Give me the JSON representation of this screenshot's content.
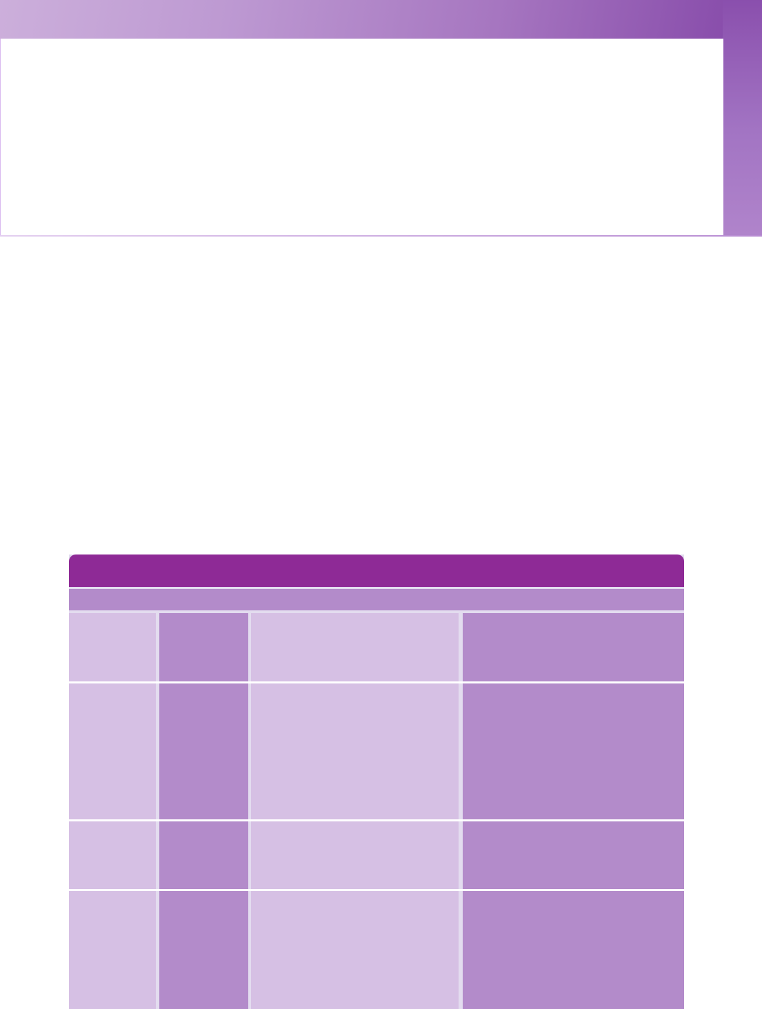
{
  "colors": {
    "header": "#8e2a96",
    "subheader": "#b38bca",
    "cell_light": "#d6c0e4",
    "cell_dark": "#b38bca",
    "banner_light": "#ccafdb",
    "banner_dark": "#8447a8"
  },
  "table": {
    "columns": 4,
    "rows": 4
  }
}
